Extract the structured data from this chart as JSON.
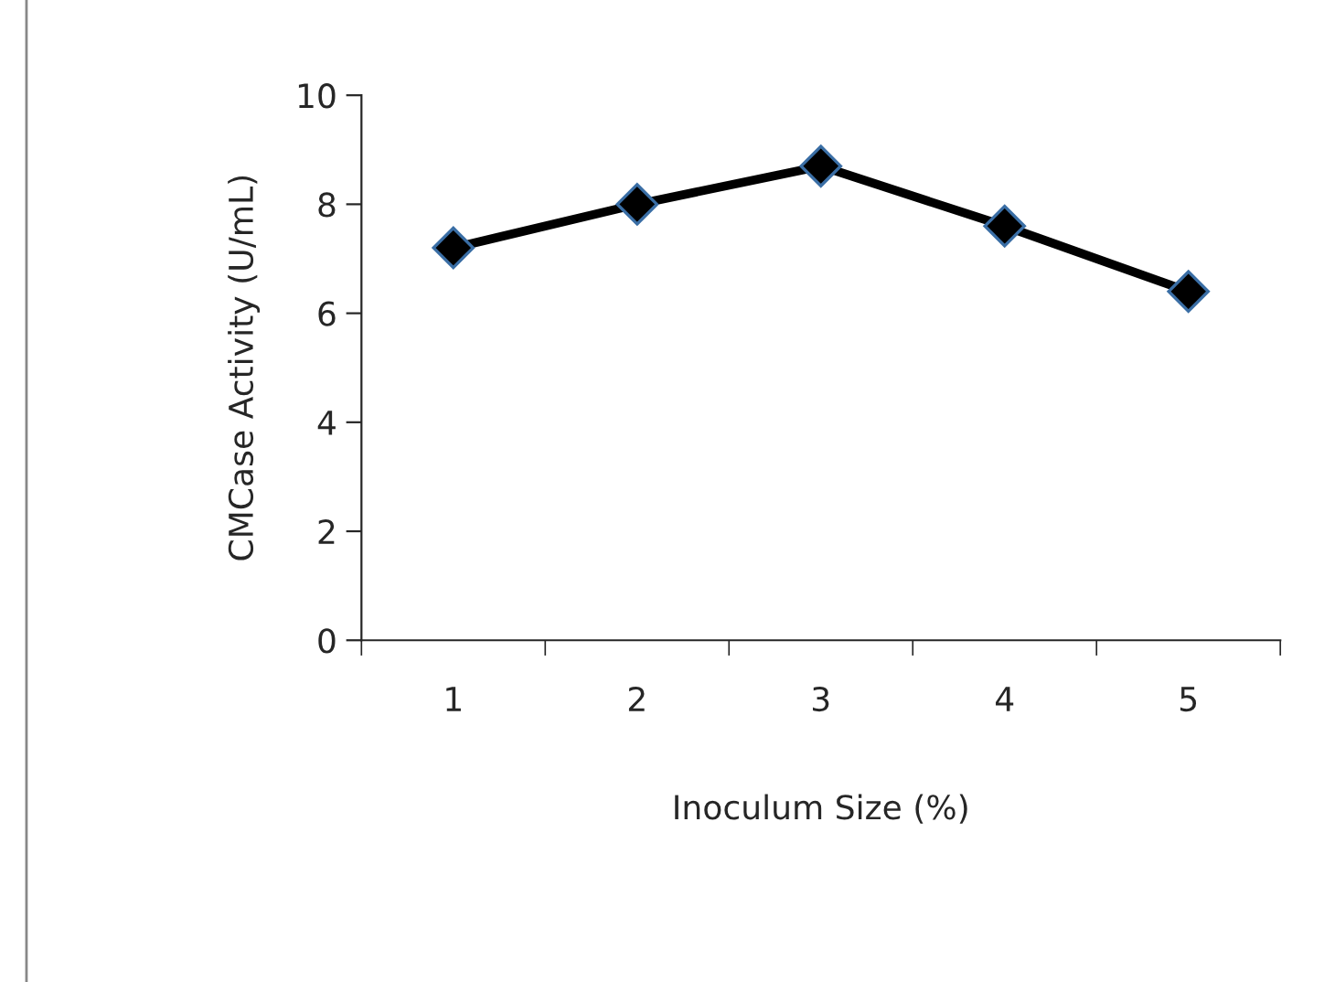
{
  "chart_data": {
    "type": "line",
    "xlabel": "Inoculum Size (%)",
    "ylabel": "CMCase Activity (U/mL)",
    "categories": [
      "1",
      "2",
      "3",
      "4",
      "5"
    ],
    "series": [
      {
        "color": "#000000",
        "values": [
          7.2,
          8.0,
          8.7,
          7.6,
          6.4
        ]
      }
    ],
    "ylim": [
      0,
      10
    ],
    "yticks": [
      0,
      2,
      4,
      6,
      8,
      10
    ],
    "marker": "diamond",
    "line_style": "solid",
    "grid": false,
    "legend": false
  }
}
